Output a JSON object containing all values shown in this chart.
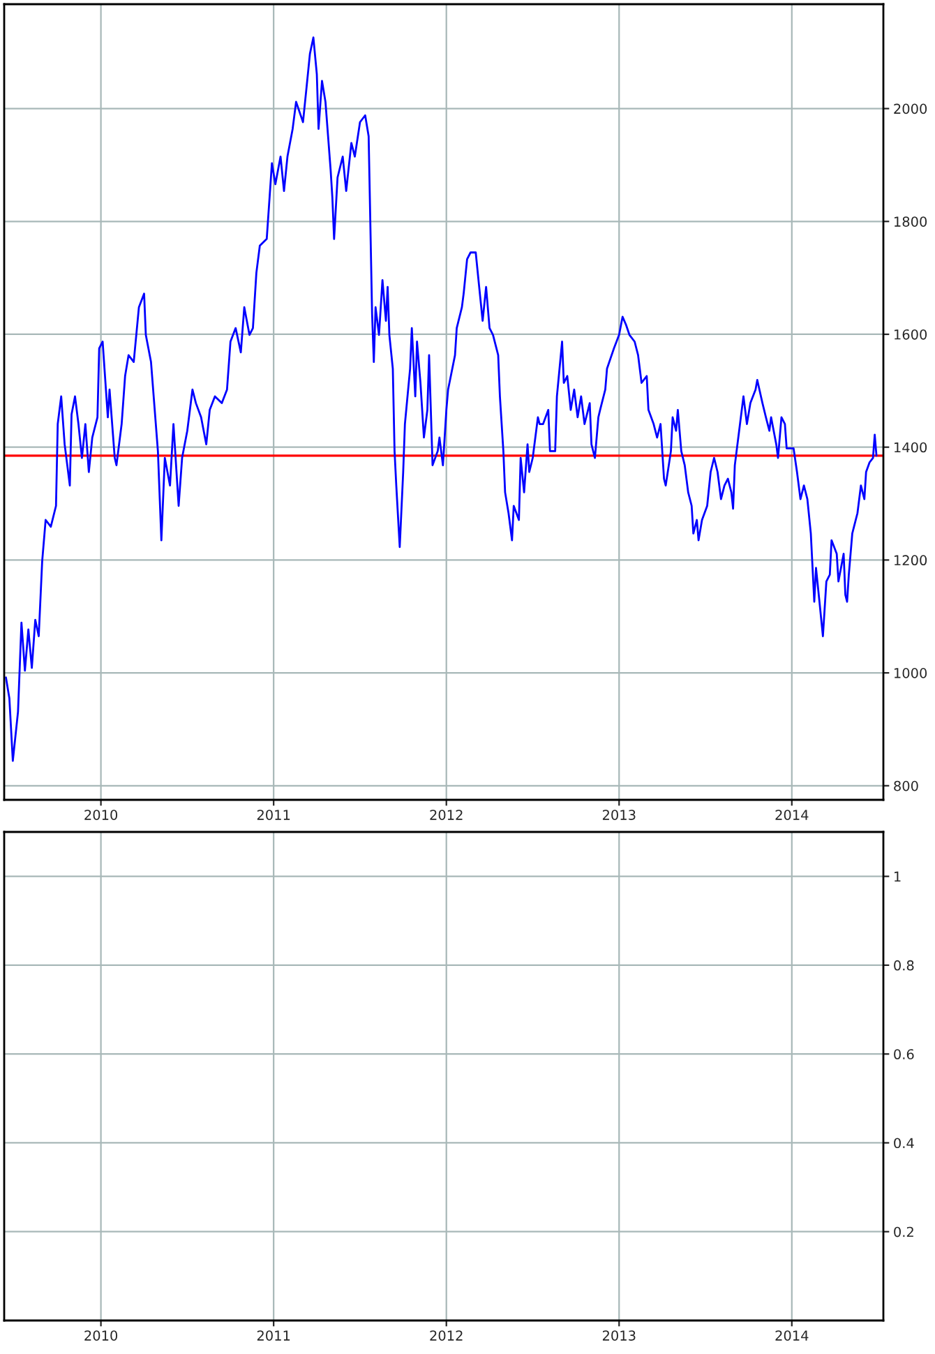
{
  "chart_data": [
    {
      "type": "line",
      "xlim": [
        2009.44,
        2014.53
      ],
      "xticks": [
        2010,
        2011,
        2012,
        2013,
        2014
      ],
      "ylim": [
        775,
        2185
      ],
      "yticks": [
        800,
        1000,
        1200,
        1400,
        1600,
        1800,
        2000
      ],
      "grid": true,
      "x": [
        2009.45,
        2009.47,
        2009.49,
        2009.52,
        2009.54,
        2009.56,
        2009.58,
        2009.6,
        2009.62,
        2009.64,
        2009.66,
        2009.68,
        2009.71,
        2009.74,
        2009.75,
        2009.77,
        2009.79,
        2009.82,
        2009.83,
        2009.85,
        2009.87,
        2009.89,
        2009.91,
        2009.93,
        2009.95,
        2009.98,
        2009.99,
        2010.01,
        2010.04,
        2010.05,
        2010.08,
        2010.09,
        2010.12,
        2010.14,
        2010.16,
        2010.19,
        2010.22,
        2010.25,
        2010.26,
        2010.29,
        2010.33,
        2010.35,
        2010.37,
        2010.4,
        2010.42,
        2010.45,
        2010.47,
        2010.5,
        2010.53,
        2010.55,
        2010.58,
        2010.61,
        2010.63,
        2010.66,
        2010.7,
        2010.73,
        2010.75,
        2010.78,
        2010.81,
        2010.83,
        2010.86,
        2010.88,
        2010.9,
        2010.92,
        2010.96,
        2010.99,
        2011.01,
        2011.04,
        2011.06,
        2011.08,
        2011.11,
        2011.13,
        2011.17,
        2011.19,
        2011.21,
        2011.23,
        2011.25,
        2011.26,
        2011.28,
        2011.3,
        2011.33,
        2011.34,
        2011.35,
        2011.37,
        2011.4,
        2011.42,
        2011.45,
        2011.47,
        2011.5,
        2011.53,
        2011.55,
        2011.56,
        2011.57,
        2011.58,
        2011.59,
        2011.61,
        2011.63,
        2011.65,
        2011.66,
        2011.67,
        2011.69,
        2011.7,
        2011.71,
        2011.73,
        2011.75,
        2011.76,
        2011.79,
        2011.8,
        2011.82,
        2011.83,
        2011.85,
        2011.87,
        2011.89,
        2011.9,
        2011.91,
        2011.92,
        2011.95,
        2011.96,
        2011.98,
        2012.0,
        2012.01,
        2012.05,
        2012.06,
        2012.09,
        2012.1,
        2012.12,
        2012.14,
        2012.17,
        2012.19,
        2012.21,
        2012.23,
        2012.25,
        2012.27,
        2012.3,
        2012.31,
        2012.33,
        2012.34,
        2012.36,
        2012.38,
        2012.39,
        2012.42,
        2012.43,
        2012.45,
        2012.47,
        2012.48,
        2012.5,
        2012.53,
        2012.54,
        2012.56,
        2012.59,
        2012.6,
        2012.63,
        2012.64,
        2012.67,
        2012.68,
        2012.7,
        2012.72,
        2012.74,
        2012.76,
        2012.78,
        2012.8,
        2012.83,
        2012.84,
        2012.86,
        2012.88,
        2012.89,
        2012.92,
        2012.93,
        2012.97,
        2013.0,
        2013.02,
        2013.04,
        2013.06,
        2013.09,
        2013.11,
        2013.13,
        2013.16,
        2013.17,
        2013.2,
        2013.22,
        2013.24,
        2013.26,
        2013.27,
        2013.3,
        2013.31,
        2013.33,
        2013.34,
        2013.36,
        2013.38,
        2013.4,
        2013.42,
        2013.43,
        2013.45,
        2013.46,
        2013.48,
        2013.51,
        2013.53,
        2013.55,
        2013.57,
        2013.59,
        2013.61,
        2013.63,
        2013.65,
        2013.66,
        2013.67,
        2013.7,
        2013.72,
        2013.74,
        2013.76,
        2013.79,
        2013.8,
        2013.83,
        2013.85,
        2013.87,
        2013.88,
        2013.91,
        2013.92,
        2013.94,
        2013.96,
        2013.97,
        2014.01,
        2014.03,
        2014.05,
        2014.07,
        2014.09,
        2014.11,
        2014.13,
        2014.14,
        2014.16,
        2014.18,
        2014.2,
        2014.22,
        2014.23,
        2014.26,
        2014.27,
        2014.3,
        2014.31,
        2014.32,
        2014.33,
        2014.35,
        2014.36,
        2014.38,
        2014.4,
        2014.42,
        2014.43,
        2014.45,
        2014.47,
        2014.48,
        2014.49
      ],
      "series": [
        {
          "color": "#0000ff",
          "values": [
            992,
            955,
            844,
            931,
            1089,
            1004,
            1077,
            1009,
            1094,
            1065,
            1198,
            1271,
            1259,
            1296,
            1441,
            1490,
            1405,
            1332,
            1458,
            1490,
            1441,
            1381,
            1441,
            1356,
            1417,
            1453,
            1575,
            1587,
            1453,
            1502,
            1381,
            1368,
            1441,
            1526,
            1563,
            1551,
            1648,
            1672,
            1599,
            1551,
            1393,
            1235,
            1381,
            1332,
            1441,
            1296,
            1381,
            1429,
            1502,
            1478,
            1453,
            1405,
            1466,
            1490,
            1478,
            1502,
            1587,
            1611,
            1568,
            1648,
            1599,
            1611,
            1709,
            1757,
            1769,
            1903,
            1866,
            1915,
            1854,
            1915,
            1964,
            2012,
            1976,
            2036,
            2097,
            2126,
            2061,
            1964,
            2049,
            2012,
            1891,
            1842,
            1769,
            1878,
            1915,
            1854,
            1939,
            1915,
            1976,
            1988,
            1951,
            1794,
            1636,
            1551,
            1648,
            1599,
            1696,
            1624,
            1684,
            1599,
            1539,
            1393,
            1332,
            1223,
            1356,
            1441,
            1539,
            1611,
            1490,
            1587,
            1514,
            1417,
            1466,
            1563,
            1466,
            1368,
            1393,
            1417,
            1368,
            1466,
            1502,
            1563,
            1611,
            1648,
            1672,
            1733,
            1745,
            1745,
            1684,
            1624,
            1684,
            1611,
            1599,
            1563,
            1490,
            1393,
            1320,
            1283,
            1235,
            1296,
            1271,
            1381,
            1320,
            1405,
            1356,
            1381,
            1453,
            1441,
            1441,
            1466,
            1393,
            1393,
            1490,
            1587,
            1514,
            1526,
            1466,
            1502,
            1453,
            1490,
            1441,
            1478,
            1405,
            1381,
            1453,
            1466,
            1502,
            1539,
            1575,
            1599,
            1631,
            1617,
            1599,
            1587,
            1563,
            1514,
            1526,
            1466,
            1441,
            1417,
            1441,
            1344,
            1332,
            1393,
            1453,
            1429,
            1466,
            1393,
            1368,
            1320,
            1296,
            1247,
            1271,
            1235,
            1271,
            1296,
            1356,
            1381,
            1356,
            1308,
            1332,
            1344,
            1320,
            1291,
            1368,
            1441,
            1490,
            1441,
            1478,
            1502,
            1519,
            1478,
            1453,
            1429,
            1453,
            1405,
            1381,
            1453,
            1441,
            1398,
            1398,
            1356,
            1308,
            1332,
            1308,
            1247,
            1126,
            1186,
            1126,
            1065,
            1162,
            1174,
            1235,
            1211,
            1162,
            1211,
            1138,
            1126,
            1174,
            1247,
            1259,
            1283,
            1332,
            1308,
            1356,
            1373,
            1381,
            1422,
            1385
          ]
        }
      ],
      "ref_lines": [
        {
          "axis": "y",
          "value": 1385,
          "color": "#ff0000"
        }
      ]
    },
    {
      "type": "line",
      "xlim": [
        2009.44,
        2014.53
      ],
      "xticks": [
        2010,
        2011,
        2012,
        2013,
        2014
      ],
      "ylim": [
        0,
        1.1
      ],
      "yticks": [
        0.2,
        0.4,
        0.6,
        0.8,
        1
      ],
      "grid": true
    }
  ]
}
